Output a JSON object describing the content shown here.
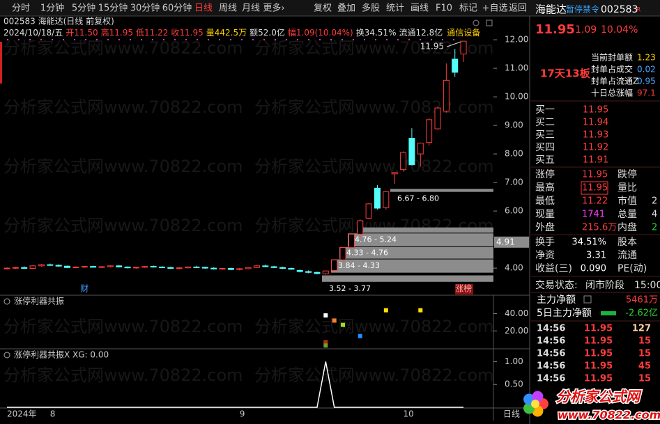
{
  "toolbar": {
    "periods": [
      "分时",
      "1分钟",
      "5分钟",
      "15分钟",
      "30分钟",
      "60分钟",
      "日线",
      "周线",
      "月线",
      "更多›"
    ],
    "active": 6,
    "tools": [
      "复权",
      "叠加",
      "多股",
      "统计",
      "画线",
      "F10",
      "标记",
      "+自选",
      "返回"
    ]
  },
  "watermark": "分析家公式网www.70822.com",
  "chart_data": [
    {
      "type": "candlestick",
      "title": "002583 海能达(日线 前复权)",
      "date": "2024/10/18/五",
      "info": [
        {
          "label": "开",
          "value": "11.50",
          "color": "#ff3c3c"
        },
        {
          "label": "高",
          "value": "11.95",
          "color": "#ff3c3c"
        },
        {
          "label": "低",
          "value": "11.22",
          "color": "#ff3c3c"
        },
        {
          "label": "收",
          "value": "11.95",
          "color": "#ff3c3c"
        },
        {
          "label": "量",
          "value": "442.5万",
          "color": "#ffd000"
        },
        {
          "label": "额",
          "value": "52.0亿",
          "color": "#dddddd"
        },
        {
          "label": "幅",
          "value": "1.09(10.04%)",
          "color": "#ff3c3c"
        },
        {
          "label": "换",
          "value": "34.51%",
          "color": "#dddddd"
        },
        {
          "label": "流通",
          "value": "12.8亿",
          "color": "#dddddd"
        }
      ],
      "industry": "通信设备",
      "up_color": "#ff3c3c",
      "down_color": "#54fcfc",
      "categories": [
        "2024年",
        null,
        null,
        null,
        null,
        "8",
        null,
        null,
        null,
        null,
        null,
        null,
        null,
        null,
        null,
        null,
        null,
        null,
        null,
        null,
        null,
        null,
        null,
        null,
        null,
        null,
        null,
        "9",
        null,
        null,
        null,
        null,
        null,
        null,
        null,
        null,
        null,
        null,
        null,
        null,
        null,
        null,
        null,
        null,
        null,
        null,
        "10",
        null,
        null,
        null,
        null,
        null,
        null,
        null
      ],
      "open": [
        3.98,
        4.0,
        4.02,
        3.99,
        4.08,
        4.12,
        4.1,
        4.07,
        4.02,
        4.04,
        4.06,
        4.03,
        4.05,
        4.08,
        4.04,
        4.01,
        4.03,
        4.06,
        4.04,
        4.02,
        3.99,
        4.01,
        4.04,
        4.03,
        4.0,
        3.97,
        3.99,
        3.95,
        3.98,
        4.02,
        4.08,
        4.05,
        4.02,
        3.99,
        3.92,
        3.88,
        3.85,
        3.8,
        3.92,
        4.29,
        4.72,
        5.19,
        5.75,
        6.8,
        6.12,
        7.3,
        7.45,
        8.55,
        8.0,
        8.4,
        8.88,
        9.5,
        11.32,
        11.5
      ],
      "high": [
        4.03,
        4.05,
        4.06,
        4.1,
        4.15,
        4.16,
        4.13,
        4.09,
        4.06,
        4.08,
        4.09,
        4.07,
        4.1,
        4.1,
        4.06,
        4.05,
        4.08,
        4.09,
        4.07,
        4.05,
        4.04,
        4.06,
        4.08,
        4.05,
        4.03,
        4.01,
        4.02,
        4.0,
        4.04,
        4.1,
        4.12,
        4.08,
        4.05,
        4.02,
        3.95,
        3.92,
        3.88,
        3.92,
        4.29,
        4.72,
        5.19,
        5.71,
        6.28,
        6.91,
        6.71,
        7.35,
        8.09,
        8.9,
        8.4,
        9.25,
        9.65,
        11.17,
        11.68,
        11.95
      ],
      "low": [
        3.95,
        3.97,
        3.98,
        3.98,
        4.05,
        4.08,
        4.05,
        4.0,
        3.99,
        4.01,
        4.02,
        4.0,
        4.03,
        4.02,
        3.99,
        3.98,
        4.01,
        4.02,
        4.0,
        3.97,
        3.96,
        3.99,
        4.01,
        3.98,
        3.95,
        3.94,
        3.93,
        3.92,
        3.96,
        4.0,
        4.03,
        4.0,
        3.97,
        3.94,
        3.85,
        3.82,
        3.78,
        3.77,
        3.9,
        4.25,
        4.7,
        5.1,
        5.72,
        6.05,
        6.05,
        6.95,
        7.4,
        7.6,
        7.55,
        8.3,
        8.85,
        9.45,
        10.7,
        11.22
      ],
      "close": [
        4.0,
        4.02,
        3.99,
        4.08,
        4.12,
        4.1,
        4.07,
        4.02,
        4.04,
        4.06,
        4.03,
        4.05,
        4.08,
        4.04,
        4.01,
        4.03,
        4.06,
        4.04,
        4.02,
        3.99,
        4.01,
        4.04,
        4.03,
        4.0,
        3.97,
        3.99,
        3.95,
        3.98,
        4.02,
        4.08,
        4.05,
        4.02,
        3.99,
        3.96,
        3.88,
        3.85,
        3.81,
        3.9,
        4.29,
        4.72,
        5.19,
        5.66,
        6.25,
        6.1,
        6.68,
        7.35,
        8.05,
        7.62,
        8.38,
        9.2,
        9.61,
        10.58,
        10.86,
        11.95
      ],
      "events": [
        null,
        null,
        null,
        null,
        null,
        null,
        null,
        null,
        null,
        "财",
        null,
        null,
        null,
        null,
        null,
        null,
        null,
        null,
        null,
        null,
        null,
        null,
        null,
        null,
        null,
        null,
        null,
        null,
        null,
        null,
        null,
        null,
        null,
        null,
        null,
        null,
        null,
        null,
        null,
        null,
        null,
        null,
        null,
        null,
        null,
        null,
        null,
        null,
        null,
        null,
        null,
        null,
        null,
        "涨榜"
      ],
      "price_ranges": [
        {
          "label": "6.67 - 6.80",
          "low": 6.67,
          "high": 6.8
        },
        {
          "label": "5.24 - 5.45",
          "low": 5.24,
          "high": 5.45
        },
        {
          "label": "4.76 - 5.24",
          "low": 4.76,
          "high": 5.24
        },
        {
          "label": "4.33 - 4.76",
          "low": 4.33,
          "high": 4.76
        },
        {
          "label": "3.84 - 4.33",
          "low": 3.84,
          "high": 4.33
        },
        {
          "label": "3.52 - 3.77",
          "low": 3.52,
          "high": 3.77
        }
      ],
      "cursor_price": 4.91,
      "ylim": [
        3.1,
        12.71
      ],
      "yticks": [
        {
          "value": 4,
          "label": "4.00"
        },
        {
          "value": 6,
          "label": "6.00"
        },
        {
          "value": 7,
          "label": "7.00"
        },
        {
          "value": 8,
          "label": "8.00"
        },
        {
          "value": 9,
          "label": "9.00"
        },
        {
          "value": 10,
          "label": "10.00"
        },
        {
          "value": 11,
          "label": "11.00"
        },
        {
          "value": 12,
          "label": "12.00"
        }
      ],
      "period": "日线"
    },
    {
      "type": "scatter",
      "title": "涨停利器共振",
      "series": [
        {
          "color": "#ffffff",
          "values": [
            null,
            null,
            null,
            null,
            null,
            null,
            null,
            null,
            null,
            null,
            null,
            null,
            null,
            null,
            null,
            null,
            null,
            null,
            null,
            null,
            null,
            null,
            null,
            null,
            null,
            null,
            null,
            null,
            null,
            null,
            null,
            null,
            null,
            null,
            null,
            null,
            null,
            38,
            null,
            null,
            null,
            null,
            null,
            null,
            null,
            null,
            null,
            null,
            null,
            null,
            null,
            null,
            null,
            null
          ]
        },
        {
          "color": "#ff7f27",
          "values": [
            null,
            null,
            null,
            null,
            null,
            null,
            null,
            null,
            null,
            null,
            null,
            null,
            null,
            null,
            null,
            null,
            null,
            null,
            null,
            null,
            null,
            null,
            null,
            null,
            null,
            null,
            null,
            null,
            null,
            null,
            null,
            null,
            null,
            null,
            null,
            null,
            null,
            null,
            32,
            null,
            null,
            null,
            null,
            null,
            null,
            null,
            null,
            null,
            null,
            null,
            null,
            null,
            null,
            null
          ]
        },
        {
          "color": "#a0e020",
          "values": [
            null,
            null,
            null,
            null,
            null,
            null,
            null,
            null,
            null,
            null,
            null,
            null,
            null,
            null,
            null,
            null,
            null,
            null,
            null,
            null,
            null,
            null,
            null,
            null,
            null,
            null,
            null,
            null,
            null,
            null,
            null,
            null,
            null,
            null,
            null,
            null,
            null,
            null,
            null,
            27,
            null,
            null,
            null,
            null,
            null,
            null,
            null,
            null,
            null,
            null,
            null,
            null,
            null,
            null
          ]
        },
        {
          "color": "#2090ff",
          "values": [
            null,
            null,
            null,
            null,
            null,
            null,
            null,
            null,
            null,
            null,
            null,
            null,
            null,
            null,
            null,
            null,
            null,
            null,
            null,
            null,
            null,
            null,
            null,
            null,
            null,
            null,
            null,
            null,
            null,
            null,
            null,
            null,
            null,
            null,
            null,
            null,
            null,
            null,
            null,
            null,
            null,
            14,
            null,
            null,
            null,
            null,
            null,
            null,
            null,
            null,
            null,
            null,
            null,
            null
          ]
        },
        {
          "color": "#b03010",
          "values": [
            null,
            null,
            null,
            null,
            null,
            null,
            null,
            null,
            null,
            null,
            null,
            null,
            null,
            null,
            null,
            null,
            null,
            null,
            null,
            null,
            null,
            null,
            null,
            null,
            null,
            null,
            null,
            null,
            null,
            null,
            null,
            null,
            null,
            null,
            null,
            null,
            null,
            7,
            null,
            null,
            null,
            null,
            null,
            null,
            null,
            null,
            null,
            null,
            null,
            null,
            null,
            null,
            null,
            null
          ]
        },
        {
          "color": "#70a030",
          "values": [
            null,
            null,
            null,
            null,
            null,
            null,
            null,
            null,
            null,
            null,
            null,
            null,
            null,
            null,
            null,
            null,
            null,
            null,
            null,
            null,
            null,
            null,
            null,
            null,
            null,
            null,
            null,
            null,
            null,
            null,
            null,
            null,
            null,
            null,
            null,
            null,
            null,
            3,
            null,
            null,
            null,
            null,
            null,
            null,
            null,
            null,
            null,
            null,
            null,
            null,
            null,
            null,
            null,
            null
          ]
        },
        {
          "color": "#ffe000",
          "values": [
            null,
            null,
            null,
            null,
            null,
            null,
            null,
            null,
            null,
            null,
            null,
            null,
            null,
            null,
            null,
            null,
            null,
            null,
            null,
            null,
            null,
            null,
            null,
            null,
            null,
            null,
            null,
            null,
            null,
            null,
            null,
            null,
            null,
            null,
            null,
            null,
            null,
            null,
            null,
            null,
            null,
            null,
            null,
            null,
            44,
            null,
            null,
            null,
            44,
            null,
            null,
            null,
            null,
            null
          ]
        }
      ],
      "ylim": [
        0,
        55
      ],
      "yticks": [
        {
          "value": 40,
          "label": "40.00"
        },
        {
          "value": 20,
          "label": "20.00"
        }
      ]
    },
    {
      "type": "line",
      "title": "涨停利器共振X XG: 0.00",
      "color": "#ffffff",
      "values": [
        0,
        0,
        0,
        0,
        0,
        0,
        0,
        0,
        0,
        0,
        0,
        0,
        0,
        0,
        0,
        0,
        0,
        0,
        0,
        0,
        0,
        0,
        0,
        0,
        0,
        0,
        0,
        0,
        0,
        0,
        0,
        0,
        0,
        0,
        0,
        0,
        0,
        1,
        0,
        0,
        0,
        0,
        0,
        0,
        0,
        0,
        0,
        0,
        0,
        0,
        0,
        0,
        0,
        0
      ],
      "ylim": [
        0,
        1.25
      ],
      "yticks": [
        {
          "value": 1,
          "label": "1.00"
        },
        {
          "value": 0.5,
          "label": "0.50"
        }
      ]
    }
  ],
  "quote": {
    "name": "海能达",
    "status": "暂停禁令",
    "code": "002583",
    "flag": "R",
    "price": "11.95",
    "change": "1.09",
    "pct": "10.04%"
  },
  "limit": {
    "streak": "17天13板",
    "rows": [
      [
        "当前封单额",
        "1.23"
      ],
      [
        "封单占成交",
        "0.02"
      ],
      [
        "封单占流通Z",
        "0.95"
      ],
      [
        "十日总涨幅",
        "97.1"
      ]
    ]
  },
  "bids": [
    [
      "买一",
      "11.95"
    ],
    [
      "买二",
      "11.94"
    ],
    [
      "买三",
      "11.93"
    ],
    [
      "买四",
      "11.92"
    ],
    [
      "买五",
      "11.91"
    ]
  ],
  "stats": [
    [
      "涨停",
      "11.95",
      "跌停"
    ],
    [
      "最高",
      "11.95",
      "量比"
    ],
    [
      "最低",
      "11.22",
      "市值",
      "2"
    ],
    [
      "现量",
      "1741",
      "总量",
      "4"
    ],
    [
      "外盘",
      "215.6万",
      "内盘",
      "2"
    ]
  ],
  "stats2": [
    [
      "换手",
      "34.51%",
      "股本"
    ],
    [
      "净资",
      "3.31",
      "流通"
    ],
    [
      "收益(三)",
      "0.090",
      "PE(动)"
    ]
  ],
  "status": [
    "交易状态:",
    "闭市阶段",
    "15:00"
  ],
  "flows": [
    [
      "主力净额",
      "5461万"
    ],
    [
      "5日主力净额",
      "-2.62亿"
    ]
  ],
  "ticks": [
    [
      "14:56",
      "11.95",
      "127"
    ],
    [
      "14:56",
      "11.95",
      "15"
    ],
    [
      "14:56",
      "11.95",
      "15"
    ],
    [
      "14:56",
      "11.95",
      "45"
    ],
    [
      "14:56",
      "11.95",
      "15"
    ]
  ],
  "logo": {
    "text": "分析家公式网",
    "url": "www.70822.com"
  }
}
